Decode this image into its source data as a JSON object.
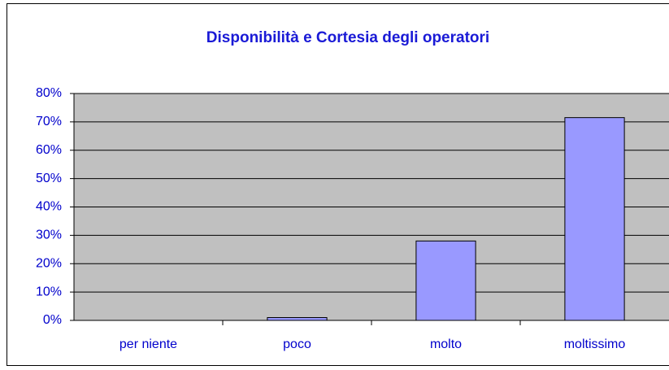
{
  "chart_data": {
    "type": "bar",
    "title": "Disponibilità e Cortesia degli operatori",
    "categories": [
      "per niente",
      "poco",
      "molto",
      "moltissimo"
    ],
    "values": [
      0,
      1,
      28,
      71.5
    ],
    "color": "#9999ff",
    "ylim": [
      0,
      80
    ],
    "yticks": [
      {
        "value": 0,
        "label": "0%"
      },
      {
        "value": 10,
        "label": "10%"
      },
      {
        "value": 20,
        "label": "20%"
      },
      {
        "value": 30,
        "label": "30%"
      },
      {
        "value": 40,
        "label": "40%"
      },
      {
        "value": 50,
        "label": "50%"
      },
      {
        "value": 60,
        "label": "60%"
      },
      {
        "value": 70,
        "label": "70%"
      },
      {
        "value": 80,
        "label": "80%"
      }
    ],
    "grid": true
  }
}
